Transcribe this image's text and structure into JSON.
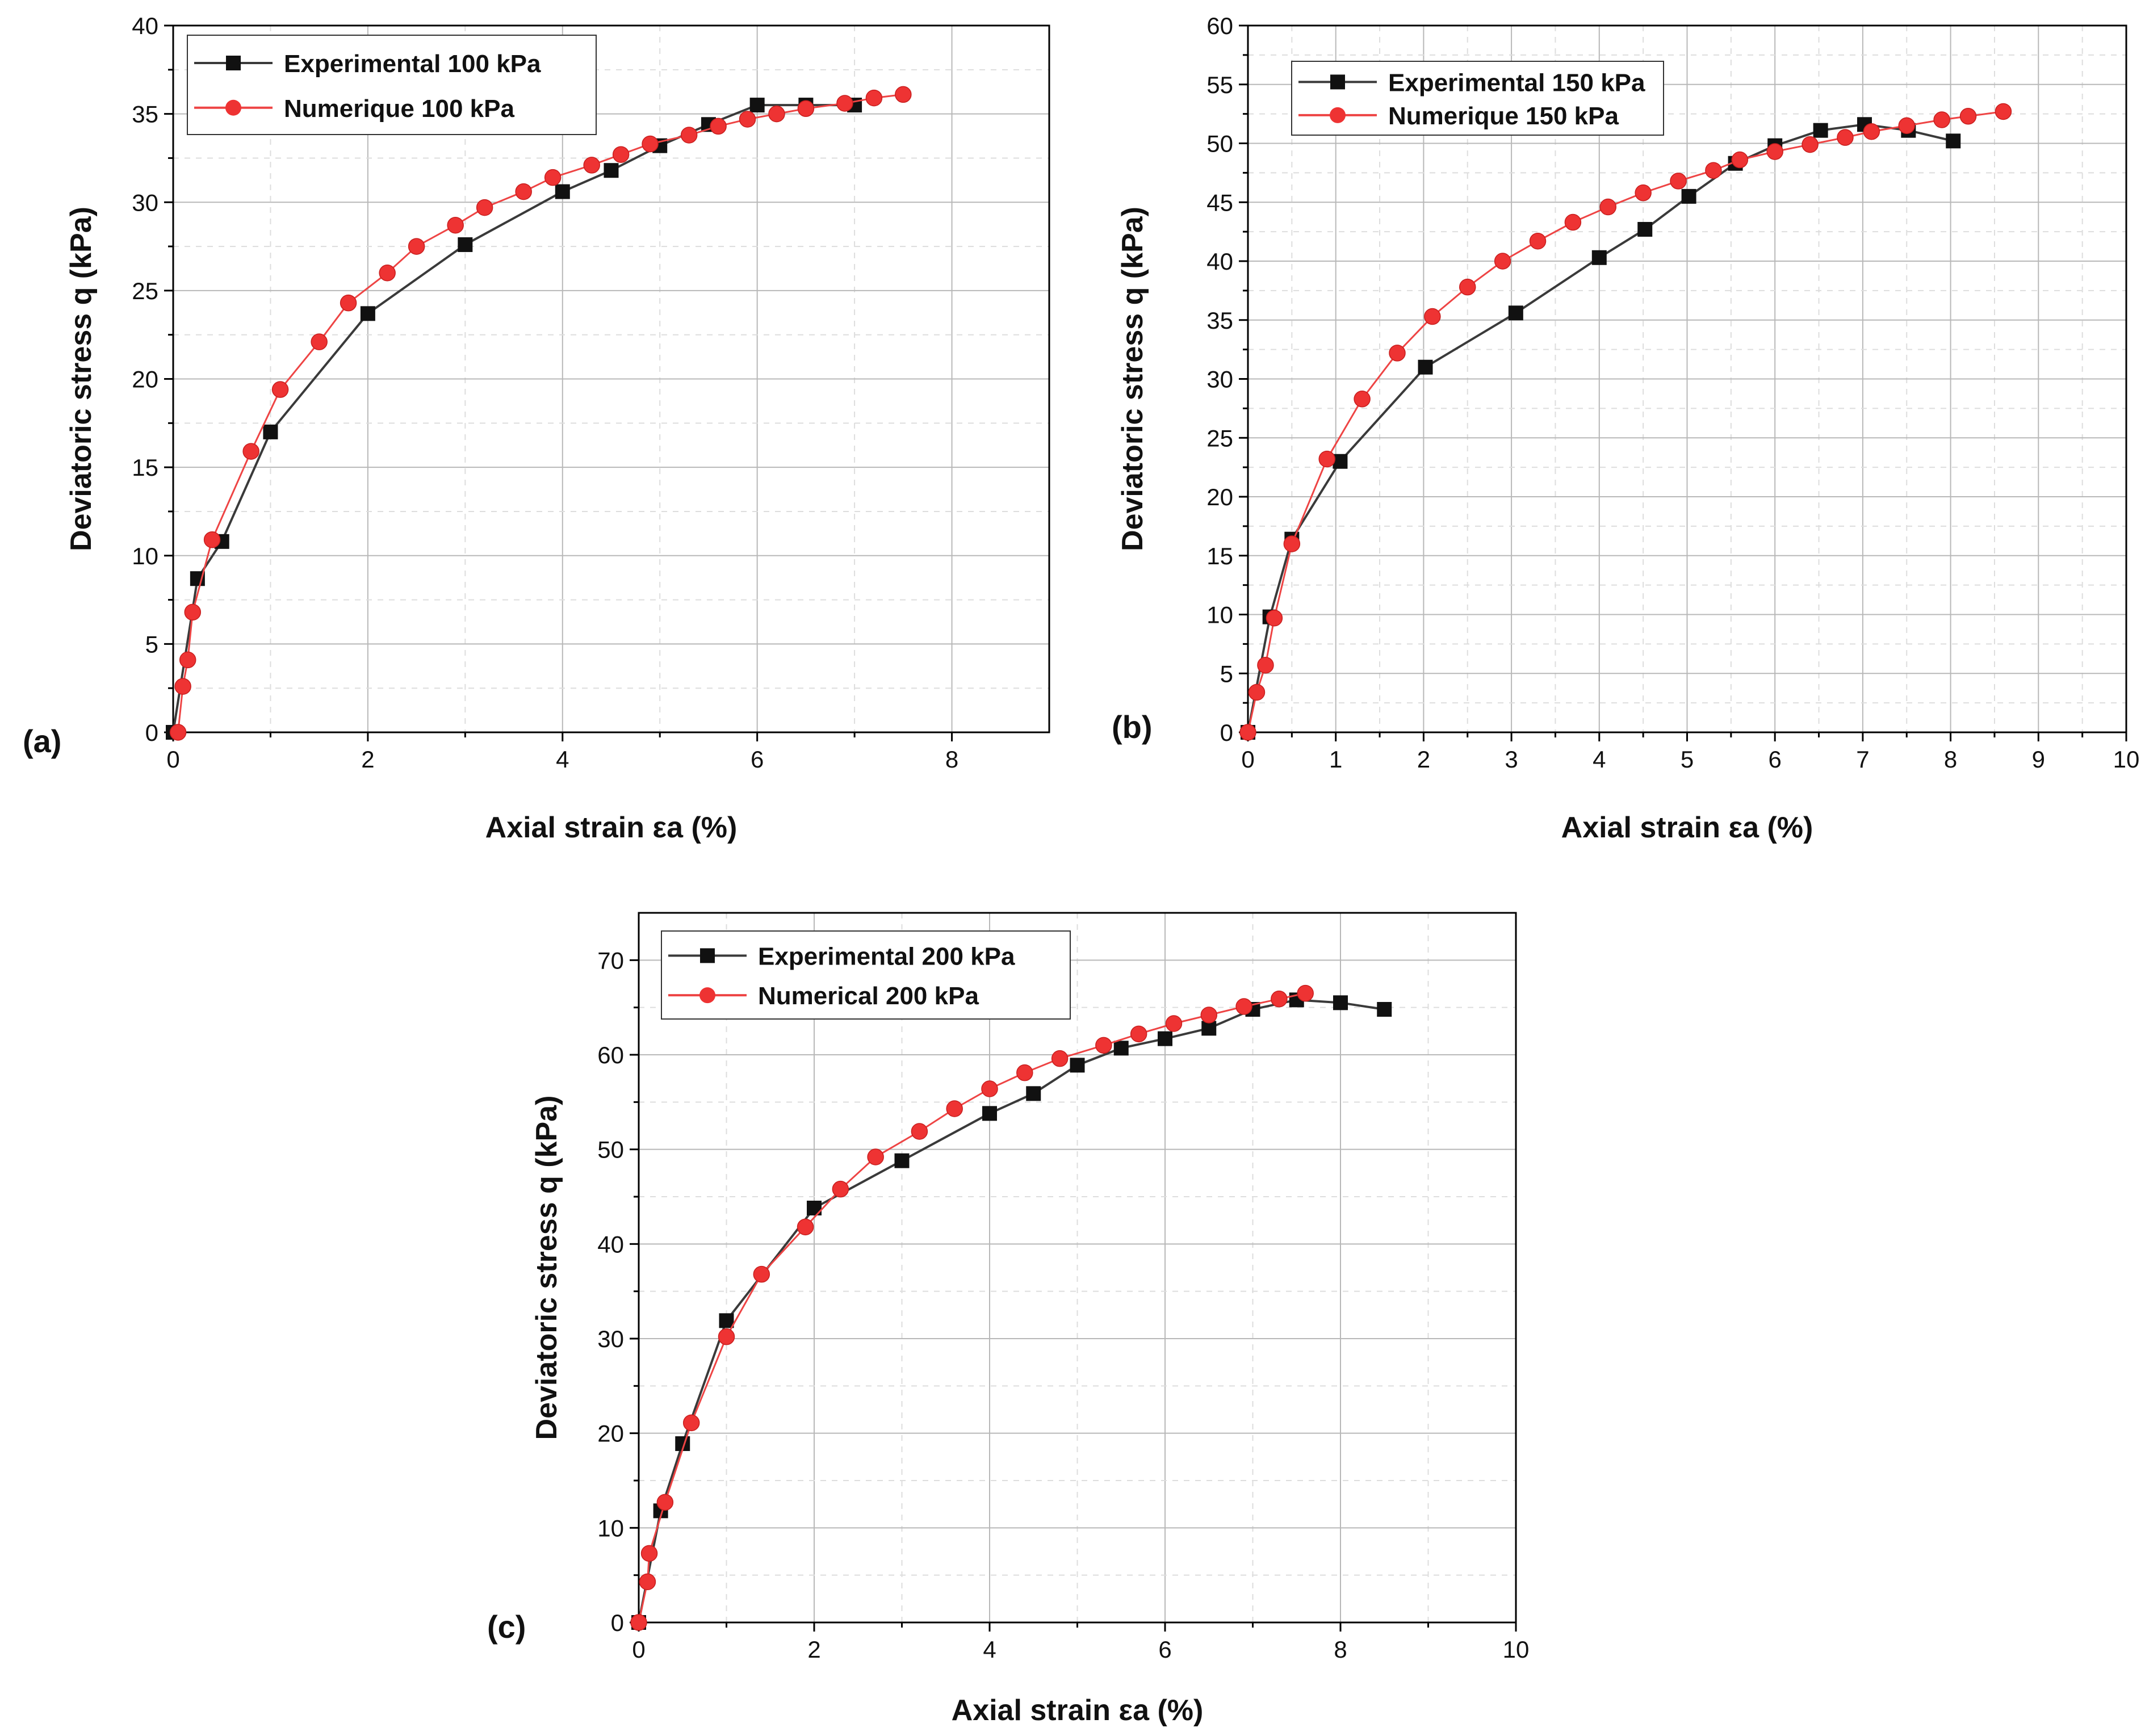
{
  "colors": {
    "experimental": "#111111",
    "experimental_line": "#3a3a3a",
    "numerical": "#ee3333",
    "numerical_line": "#ee4444",
    "grid": "#b8b8b8",
    "frame": "#000000"
  },
  "chart_data": [
    {
      "type": "line",
      "panel_label": "(a)",
      "xlabel": "Axial strain εa (%)",
      "ylabel": "Deviatoric stress q (kPa)",
      "xlim": [
        0,
        9
      ],
      "ylim": [
        0,
        40
      ],
      "xticks": [
        0,
        2,
        4,
        6,
        8
      ],
      "yticks": [
        0,
        5,
        10,
        15,
        20,
        25,
        30,
        35,
        40
      ],
      "grid": true,
      "legend_position": "top-left",
      "series": [
        {
          "name": "Experimental 100 kPa",
          "marker": "square",
          "line": true,
          "x": [
            0,
            0.25,
            0.5,
            1.0,
            2.0,
            3.0,
            4.0,
            4.5,
            5.0,
            5.5,
            6.0,
            6.5,
            7.0
          ],
          "y": [
            0,
            8.7,
            10.8,
            17.0,
            23.7,
            27.6,
            30.6,
            31.8,
            33.2,
            34.4,
            35.5,
            35.5,
            35.5
          ]
        },
        {
          "name": "Numerique 100 kPa",
          "marker": "circle",
          "line": true,
          "x": [
            0.05,
            0.1,
            0.15,
            0.2,
            0.4,
            0.8,
            1.1,
            1.5,
            1.8,
            2.2,
            2.5,
            2.9,
            3.2,
            3.6,
            3.9,
            4.3,
            4.6,
            4.9,
            5.3,
            5.6,
            5.9,
            6.2,
            6.5,
            6.9,
            7.2,
            7.5
          ],
          "y": [
            0,
            2.6,
            4.1,
            6.8,
            10.9,
            15.9,
            19.4,
            22.1,
            24.3,
            26.0,
            27.5,
            28.7,
            29.7,
            30.6,
            31.4,
            32.1,
            32.7,
            33.3,
            33.8,
            34.3,
            34.7,
            35.0,
            35.3,
            35.6,
            35.9,
            36.1
          ]
        }
      ]
    },
    {
      "type": "line",
      "panel_label": "(b)",
      "xlabel": "Axial strain  εa (%)",
      "ylabel": "Deviatoric stress q (kPa)",
      "xlim": [
        0,
        10
      ],
      "ylim": [
        0,
        60
      ],
      "xticks": [
        0,
        1,
        2,
        3,
        4,
        5,
        6,
        7,
        8,
        9,
        10
      ],
      "yticks": [
        0,
        5,
        10,
        15,
        20,
        25,
        30,
        35,
        40,
        45,
        50,
        55,
        60
      ],
      "grid": true,
      "legend_position": "top-left",
      "series": [
        {
          "name": "Experimental 150 kPa",
          "marker": "square",
          "line": true,
          "x": [
            0,
            0.25,
            0.5,
            1.05,
            2.02,
            3.05,
            4.0,
            4.52,
            5.02,
            5.55,
            6.0,
            6.52,
            7.02,
            7.52,
            8.03
          ],
          "y": [
            0,
            9.8,
            16.4,
            23.0,
            31.0,
            35.6,
            40.3,
            42.7,
            45.5,
            48.3,
            49.8,
            51.1,
            51.6,
            51.1,
            50.2
          ]
        },
        {
          "name": "Numerique 150 kPa",
          "marker": "circle",
          "line": true,
          "x": [
            0,
            0.1,
            0.2,
            0.3,
            0.5,
            0.9,
            1.3,
            1.7,
            2.1,
            2.5,
            2.9,
            3.3,
            3.7,
            4.1,
            4.5,
            4.9,
            5.3,
            5.6,
            6.0,
            6.4,
            6.8,
            7.1,
            7.5,
            7.9,
            8.2,
            8.6
          ],
          "y": [
            0,
            3.4,
            5.7,
            9.7,
            16.0,
            23.2,
            28.3,
            32.2,
            35.3,
            37.8,
            40.0,
            41.7,
            43.3,
            44.6,
            45.8,
            46.8,
            47.7,
            48.6,
            49.3,
            49.9,
            50.5,
            51.0,
            51.5,
            52.0,
            52.3,
            52.7
          ]
        }
      ]
    },
    {
      "type": "line",
      "panel_label": "(c)",
      "xlabel": "Axial strain εa (%)",
      "ylabel": "Deviatoric stress q (kPa)",
      "xlim": [
        0,
        10
      ],
      "ylim": [
        0,
        75
      ],
      "xticks": [
        0,
        2,
        4,
        6,
        8,
        10
      ],
      "yticks": [
        0,
        10,
        20,
        30,
        40,
        50,
        60,
        70
      ],
      "grid": true,
      "legend_position": "top-left",
      "series": [
        {
          "name": "Experimental 200 kPa",
          "marker": "square",
          "line": true,
          "x": [
            0,
            0.25,
            0.5,
            1.0,
            2.0,
            3.0,
            4.0,
            4.5,
            5.0,
            5.5,
            6.0,
            6.5,
            7.0,
            7.5,
            8.0,
            8.5
          ],
          "y": [
            0,
            11.8,
            18.9,
            31.9,
            43.8,
            48.8,
            53.8,
            55.9,
            58.9,
            60.7,
            61.7,
            62.8,
            64.8,
            65.8,
            65.5,
            64.8
          ]
        },
        {
          "name": "Numerical 200 kPa",
          "marker": "circle",
          "line": true,
          "x": [
            0,
            0.1,
            0.12,
            0.3,
            0.6,
            1.0,
            1.4,
            1.9,
            2.3,
            2.7,
            3.2,
            3.6,
            4.0,
            4.4,
            4.8,
            5.3,
            5.7,
            6.1,
            6.5,
            6.9,
            7.3,
            7.6
          ],
          "y": [
            0,
            4.3,
            7.3,
            12.7,
            21.1,
            30.2,
            36.8,
            41.8,
            45.8,
            49.2,
            51.9,
            54.3,
            56.4,
            58.1,
            59.6,
            61.0,
            62.2,
            63.3,
            64.2,
            65.1,
            65.9,
            66.5
          ]
        }
      ]
    }
  ]
}
